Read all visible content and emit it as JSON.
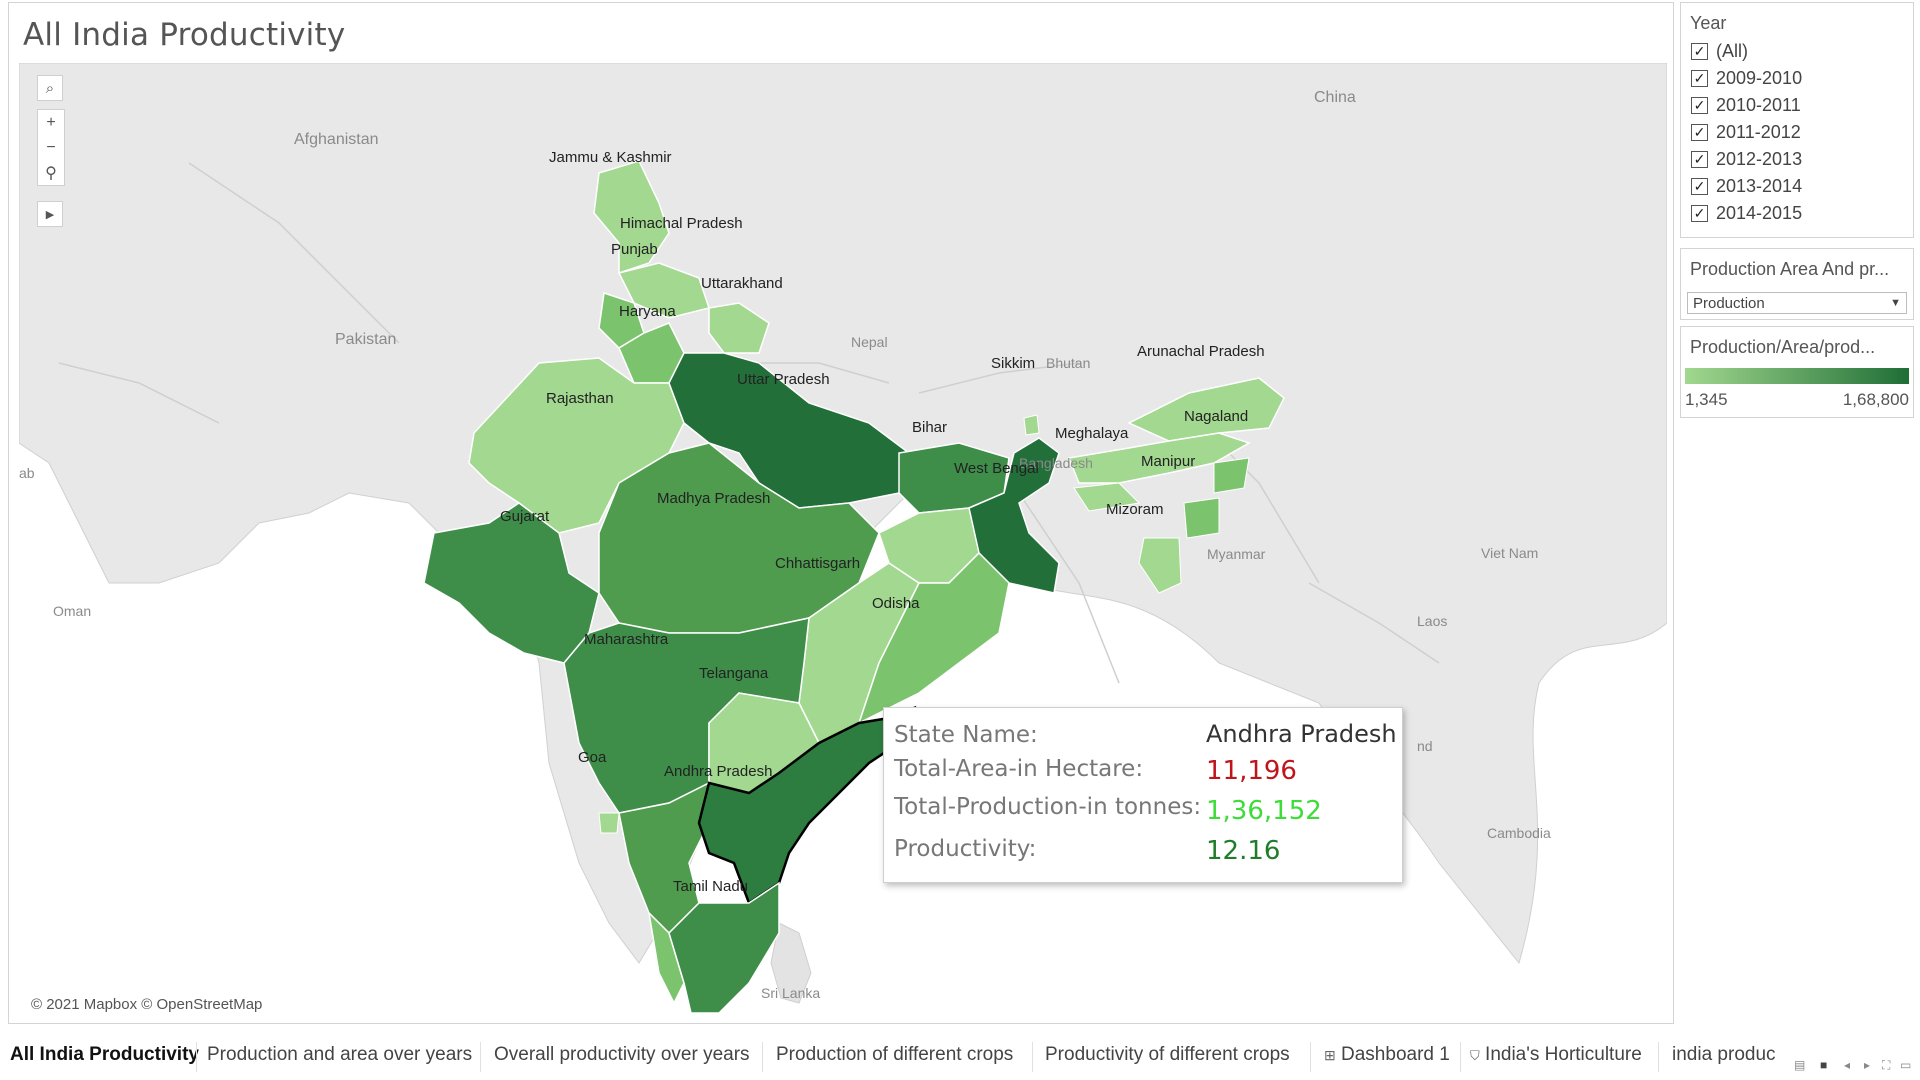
{
  "view": {
    "title": "All India Productivity"
  },
  "map": {
    "attribution": "© 2021 Mapbox © OpenStreetMap",
    "countries": [
      "China",
      "Afghanistan",
      "Pakistan",
      "Nepal",
      "Bhutan",
      "Bangladesh",
      "Myanmar",
      "Viet Nam",
      "Laos",
      "Cambodia",
      "Oman",
      "Sri Lanka",
      "ab",
      "nd"
    ],
    "states": [
      "Jammu & Kashmir",
      "Himachal Pradesh",
      "Punjab",
      "Uttarakhand",
      "Haryana",
      "Uttar Pradesh",
      "Rajasthan",
      "Sikkim",
      "Arunachal Pradesh",
      "Nagaland",
      "Meghalaya",
      "Manipur",
      "Mizoram",
      "Bihar",
      "West Bengal",
      "Gujarat",
      "Madhya Pradesh",
      "Chhattisgarh",
      "Odisha",
      "Maharashtra",
      "Telangana",
      "Goa",
      "Andhra Pradesh",
      "Tamil Nadu"
    ],
    "tooltip": {
      "rows": [
        {
          "key": "State Name:",
          "value": "Andhra Pradesh",
          "color": "#333333"
        },
        {
          "key": "Total-Area-in Hectare:",
          "value": "11,196",
          "color": "#c0141b"
        },
        {
          "key": "Total-Production-in tonnes:",
          "value": "1,36,152",
          "color": "#3ddc38"
        },
        {
          "key": "Productivity:",
          "value": "12.16",
          "color": "#1f7d2a"
        }
      ]
    },
    "colors": {
      "light": "#a2d88f",
      "dark": "#1f6e36",
      "highlight_border": "#000000"
    }
  },
  "year_filter": {
    "title": "Year",
    "items": [
      {
        "label": "(All)",
        "checked": true
      },
      {
        "label": "2009-2010",
        "checked": true
      },
      {
        "label": "2010-2011",
        "checked": true
      },
      {
        "label": "2011-2012",
        "checked": true
      },
      {
        "label": "2012-2013",
        "checked": true
      },
      {
        "label": "2013-2014",
        "checked": true
      },
      {
        "label": "2014-2015",
        "checked": true
      }
    ]
  },
  "param_panel": {
    "title": "Production Area And pr...",
    "selected": "Production"
  },
  "legend": {
    "title": "Production/Area/prod...",
    "min": "1,345",
    "max": "1,68,800"
  },
  "tabs": [
    {
      "label": "All India Productivity",
      "active": true
    },
    {
      "label": "Production and area over years"
    },
    {
      "label": "Overall productivity over years"
    },
    {
      "label": "Production of different crops"
    },
    {
      "label": "Productivity of different crops"
    },
    {
      "label": "Dashboard 1",
      "icon": "dashboard-icon"
    },
    {
      "label": "India's Horticulture",
      "icon": "story-icon"
    },
    {
      "label": "india produc"
    }
  ]
}
